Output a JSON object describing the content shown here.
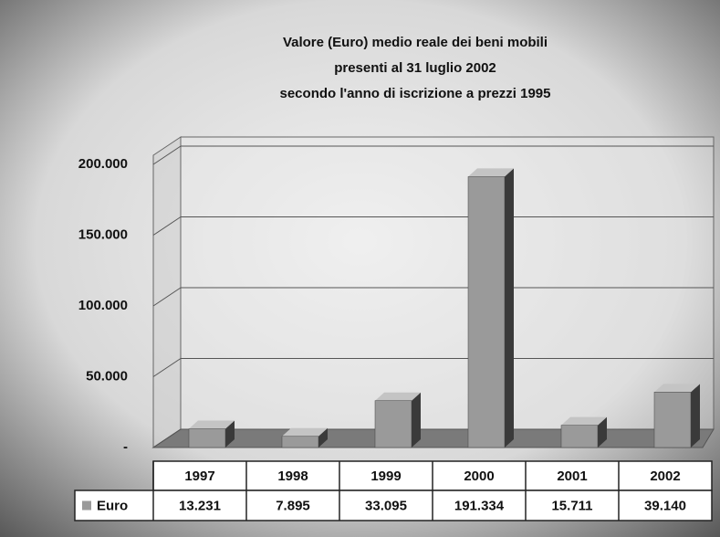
{
  "chart_data": {
    "type": "bar",
    "title": [
      "Valore (Euro) medio reale dei beni mobili",
      "presenti al 31 luglio 2002",
      "secondo l'anno di iscrizione a prezzi 1995"
    ],
    "categories": [
      "1997",
      "1998",
      "1999",
      "2000",
      "2001",
      "2002"
    ],
    "series": [
      {
        "name": "Euro",
        "color": "#9a9a9a",
        "values": [
          13231,
          7895,
          33095,
          191334,
          15711,
          39140
        ],
        "value_labels": [
          "13.231",
          "7.895",
          "33.095",
          "191.334",
          "15.711",
          "39.140"
        ]
      }
    ],
    "ylim": [
      0,
      200000
    ],
    "yticks": [
      {
        "value": 0,
        "label": "-"
      },
      {
        "value": 50000,
        "label": "50.000"
      },
      {
        "value": 100000,
        "label": "100.000"
      },
      {
        "value": 150000,
        "label": "150.000"
      },
      {
        "value": 200000,
        "label": "200.000"
      }
    ],
    "grid": true
  }
}
